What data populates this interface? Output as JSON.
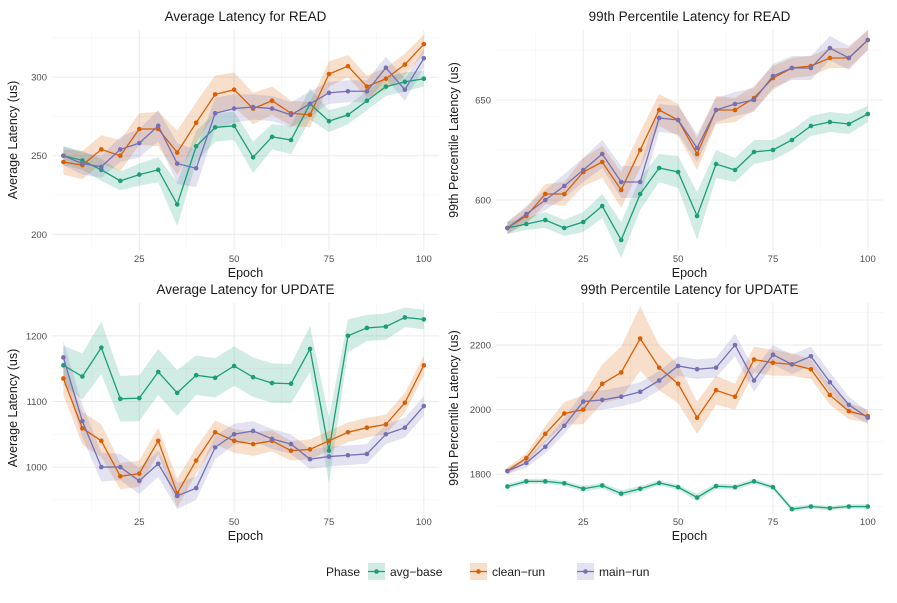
{
  "colors": {
    "avg-base": "#1b9e77",
    "clean-run": "#d95f02",
    "main-run": "#7570b3",
    "grid": "#ebebeb"
  },
  "legend": {
    "title": "Phase",
    "entries": [
      "avg−base",
      "clean−run",
      "main−run"
    ]
  },
  "chart_data": [
    {
      "type": "line",
      "title": "Average Latency for READ",
      "xlabel": "Epoch",
      "ylabel": "Average Latency (us)",
      "xlim": [
        2,
        104
      ],
      "ylim": [
        190,
        330
      ],
      "xticks": [
        25,
        50,
        75,
        100
      ],
      "yticks": [
        200,
        250,
        300
      ],
      "x": [
        5,
        10,
        15,
        20,
        25,
        30,
        35,
        40,
        45,
        50,
        55,
        60,
        65,
        70,
        75,
        80,
        85,
        90,
        95,
        100
      ],
      "series": [
        {
          "name": "avg-base",
          "values": [
            250,
            247,
            241,
            234,
            238,
            241,
            219,
            256,
            268,
            269,
            249,
            262,
            260,
            283,
            272,
            276,
            285,
            294,
            297,
            299
          ],
          "band": [
            6,
            6,
            7,
            6,
            7,
            8,
            14,
            10,
            9,
            9,
            10,
            8,
            9,
            10,
            7,
            6,
            6,
            6,
            6,
            5
          ]
        },
        {
          "name": "clean-run",
          "values": [
            246,
            244,
            254,
            250,
            267,
            267,
            252,
            271,
            289,
            292,
            280,
            285,
            277,
            276,
            302,
            307,
            294,
            299,
            308,
            321
          ],
          "band": [
            8,
            9,
            9,
            10,
            10,
            11,
            14,
            13,
            12,
            11,
            10,
            9,
            8,
            8,
            8,
            7,
            7,
            7,
            7,
            6
          ]
        },
        {
          "name": "main-run",
          "values": [
            250,
            245,
            243,
            254,
            258,
            269,
            245,
            242,
            277,
            280,
            281,
            280,
            276,
            283,
            290,
            291,
            291,
            306,
            292,
            312
          ],
          "band": [
            6,
            7,
            7,
            8,
            9,
            10,
            13,
            12,
            10,
            9,
            8,
            8,
            8,
            8,
            7,
            7,
            7,
            7,
            7,
            6
          ]
        }
      ]
    },
    {
      "type": "line",
      "title": "99th Percentile Latency for READ",
      "xlabel": "Epoch",
      "ylabel": "99th Percentile Latency (us)",
      "xlim": [
        2,
        104
      ],
      "ylim": [
        575,
        685
      ],
      "xticks": [
        25,
        50,
        75,
        100
      ],
      "yticks": [
        600,
        650
      ],
      "x": [
        5,
        10,
        15,
        20,
        25,
        30,
        35,
        40,
        45,
        50,
        55,
        60,
        65,
        70,
        75,
        80,
        85,
        90,
        95,
        100
      ],
      "series": [
        {
          "name": "avg-base",
          "values": [
            586,
            588,
            590,
            586,
            589,
            597,
            580,
            603,
            616,
            614,
            592,
            618,
            615,
            624,
            625,
            630,
            637,
            639,
            638,
            643
          ],
          "band": [
            3,
            3,
            4,
            4,
            5,
            6,
            9,
            8,
            7,
            8,
            12,
            7,
            6,
            6,
            5,
            5,
            5,
            5,
            5,
            4
          ]
        },
        {
          "name": "clean-run",
          "values": [
            586,
            592,
            603,
            603,
            614,
            619,
            605,
            625,
            645,
            640,
            623,
            645,
            645,
            651,
            661,
            666,
            667,
            671,
            671,
            680
          ],
          "band": [
            3,
            4,
            5,
            6,
            7,
            8,
            9,
            9,
            8,
            8,
            8,
            7,
            6,
            6,
            6,
            5,
            5,
            5,
            5,
            5
          ]
        },
        {
          "name": "main-run",
          "values": [
            586,
            593,
            600,
            607,
            615,
            623,
            609,
            609,
            641,
            640,
            626,
            645,
            648,
            650,
            662,
            666,
            666,
            676,
            671,
            680
          ],
          "band": [
            3,
            4,
            5,
            6,
            6,
            7,
            8,
            8,
            7,
            7,
            7,
            6,
            6,
            6,
            6,
            6,
            6,
            6,
            6,
            5
          ]
        }
      ]
    },
    {
      "type": "line",
      "title": "Average Latency for UPDATE",
      "xlabel": "Epoch",
      "ylabel": "Average Latency (us)",
      "xlim": [
        2,
        104
      ],
      "ylim": [
        930,
        1250
      ],
      "xticks": [
        25,
        50,
        75,
        100
      ],
      "yticks": [
        1000,
        1100,
        1200
      ],
      "x": [
        5,
        10,
        15,
        20,
        25,
        30,
        35,
        40,
        45,
        50,
        55,
        60,
        65,
        70,
        75,
        80,
        85,
        90,
        95,
        100
      ],
      "series": [
        {
          "name": "avg-base",
          "values": [
            1155,
            1138,
            1182,
            1104,
            1105,
            1145,
            1113,
            1140,
            1136,
            1154,
            1137,
            1128,
            1127,
            1180,
            1025,
            1200,
            1212,
            1214,
            1228,
            1225
          ],
          "band": [
            30,
            35,
            40,
            35,
            35,
            35,
            35,
            30,
            30,
            30,
            30,
            30,
            30,
            35,
            50,
            25,
            20,
            20,
            15,
            15
          ]
        },
        {
          "name": "clean-run",
          "values": [
            1135,
            1059,
            1040,
            986,
            990,
            1040,
            960,
            1010,
            1053,
            1040,
            1035,
            1040,
            1025,
            1027,
            1040,
            1053,
            1060,
            1065,
            1098,
            1155
          ],
          "band": [
            25,
            25,
            25,
            20,
            20,
            20,
            22,
            20,
            18,
            18,
            18,
            16,
            15,
            15,
            15,
            15,
            15,
            15,
            15,
            15
          ]
        },
        {
          "name": "main-run",
          "values": [
            1167,
            1070,
            1000,
            1000,
            979,
            1005,
            956,
            968,
            1030,
            1050,
            1055,
            1043,
            1035,
            1012,
            1016,
            1018,
            1020,
            1050,
            1060,
            1093
          ],
          "band": [
            25,
            25,
            22,
            20,
            20,
            20,
            20,
            18,
            18,
            16,
            15,
            15,
            15,
            15,
            15,
            15,
            15,
            15,
            15,
            15
          ]
        }
      ]
    },
    {
      "type": "line",
      "title": "99th Percentile Latency for UPDATE",
      "xlabel": "Epoch",
      "ylabel": "99th Percentile Latency (us)",
      "xlim": [
        2,
        104
      ],
      "ylim": [
        1680,
        2330
      ],
      "xticks": [
        25,
        50,
        75,
        100
      ],
      "yticks": [
        1800,
        2000,
        2200
      ],
      "x": [
        5,
        10,
        15,
        20,
        25,
        30,
        35,
        40,
        45,
        50,
        55,
        60,
        65,
        70,
        75,
        80,
        85,
        90,
        95,
        100
      ],
      "series": [
        {
          "name": "avg-base",
          "values": [
            1762,
            1778,
            1778,
            1772,
            1755,
            1765,
            1740,
            1755,
            1773,
            1760,
            1728,
            1763,
            1760,
            1778,
            1760,
            1692,
            1700,
            1695,
            1700,
            1700
          ],
          "band": [
            8,
            8,
            8,
            8,
            9,
            9,
            10,
            9,
            8,
            8,
            12,
            9,
            8,
            8,
            8,
            8,
            7,
            7,
            7,
            7
          ]
        },
        {
          "name": "clean-run",
          "values": [
            1810,
            1850,
            1925,
            1988,
            2000,
            2080,
            2115,
            2220,
            2130,
            2080,
            1975,
            2060,
            2040,
            2155,
            2145,
            2140,
            2125,
            2045,
            1995,
            1980
          ],
          "band": [
            10,
            15,
            25,
            35,
            45,
            60,
            80,
            100,
            70,
            60,
            50,
            45,
            40,
            40,
            40,
            35,
            30,
            30,
            25,
            20
          ]
        },
        {
          "name": "main-run",
          "values": [
            1810,
            1835,
            1885,
            1950,
            2025,
            2030,
            2040,
            2055,
            2090,
            2135,
            2125,
            2130,
            2200,
            2090,
            2170,
            2140,
            2165,
            2085,
            2015,
            1975
          ],
          "band": [
            10,
            15,
            20,
            25,
            30,
            30,
            30,
            30,
            30,
            30,
            30,
            30,
            35,
            35,
            30,
            30,
            30,
            30,
            25,
            20
          ]
        }
      ]
    }
  ]
}
